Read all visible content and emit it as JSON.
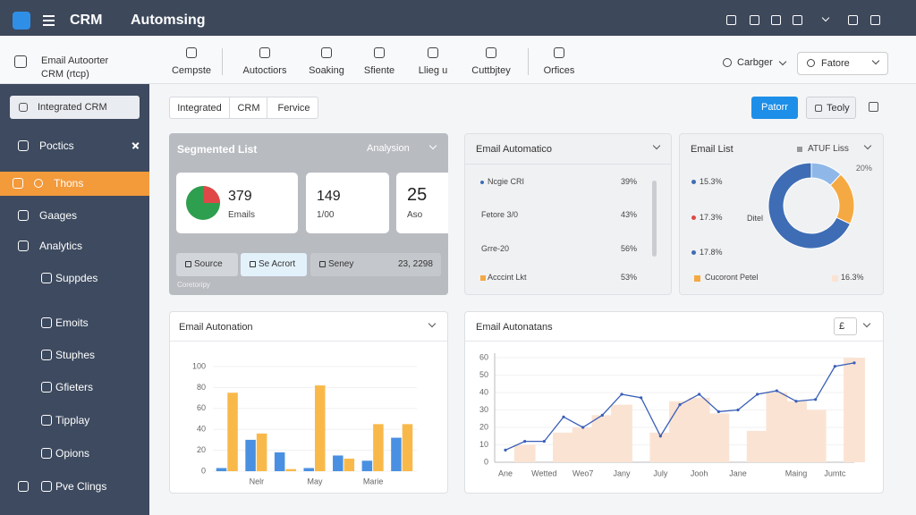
{
  "topbar": {
    "brand": "CRM",
    "title": "Automsing"
  },
  "subnav": {
    "app": [
      "Email Autoorter",
      "CRM (rtcp)"
    ],
    "items": [
      "Cempste",
      "Autoctiors",
      "Soaking",
      "Sfiente",
      "Llieg u",
      "Cuttbjtey",
      "Orfices"
    ],
    "selectors": [
      "Carbger",
      "Fatore"
    ]
  },
  "sidebar": {
    "items": [
      "Integrated CRM",
      "Poctics",
      "Thons",
      "Gaages",
      "Analytics",
      "Suppdes",
      "Emoits",
      "Stuphes",
      "Gfieters",
      "Tipplay",
      "Opions",
      "Pve Clings"
    ]
  },
  "tabs": [
    "Integrated",
    "CRM",
    "Fervice"
  ],
  "buttons": [
    "Patorr",
    "Teoly"
  ],
  "segmented": {
    "title": "Segmented List",
    "menu": "Analysion",
    "stats": [
      {
        "value": 379,
        "label": "Emails"
      },
      {
        "value": 149,
        "label": "1/00"
      },
      {
        "value": 25,
        "label": "Aso"
      }
    ],
    "actions": [
      "Source",
      "Se Acrort",
      "Seney"
    ],
    "total": "23, 2298",
    "note": "Coretoripy"
  },
  "automatico": {
    "title": "Email Automatico",
    "rows": [
      {
        "label": "Ncgie CRI",
        "value": "39%"
      },
      {
        "label": "Fetore 3/0",
        "value": "43%"
      },
      {
        "label": "Grre-20",
        "value": "56%"
      },
      {
        "label": "Acccint Lkt",
        "value": "53%"
      }
    ]
  },
  "email_list": {
    "title": "Email List",
    "menu": "ATUF Liss",
    "center_note": "Ditel",
    "legend": [
      "15.3%",
      "17.3%",
      "17.8%",
      "Cucoront Petel"
    ],
    "legend_colors": [
      "#3e6db5",
      "#e04848",
      "#3e6db5",
      "#f5a942"
    ],
    "extra": "16.3%"
  },
  "chart_data": [
    {
      "type": "pie",
      "values": [
        12,
        20,
        68
      ],
      "value_labels": [
        null,
        "20%",
        null
      ],
      "colors": [
        "#8fb8e8",
        "#f5a942",
        "#3e6db5"
      ]
    },
    {
      "type": "bar",
      "title": "Email Autonation",
      "categories": [
        null,
        "Nelr",
        null,
        "May",
        null,
        "Marie",
        null
      ],
      "series": [
        {
          "color": "#4a90e2",
          "values": [
            3,
            30,
            18,
            3,
            15,
            10,
            32
          ]
        },
        {
          "color": "#f9b94a",
          "values": [
            75,
            36,
            2,
            82,
            12,
            45,
            45
          ]
        }
      ],
      "ylim": [
        0,
        100
      ],
      "yticks": [
        0,
        20,
        40,
        60,
        80,
        100
      ]
    },
    {
      "type": "line",
      "title": "Email Autonatans",
      "menu": "£",
      "categories": [
        "Ane",
        null,
        "Wetted",
        null,
        "Weo7",
        null,
        "Jany",
        null,
        "July",
        null,
        "Jooh",
        null,
        "Jane",
        null,
        null,
        "Maing",
        null,
        "Jumtc",
        null
      ],
      "series": [
        {
          "type": "bar",
          "color": "#fbe3d3",
          "values": [
            null,
            10,
            null,
            17,
            20,
            27,
            33,
            null,
            17,
            35,
            37,
            28,
            null,
            18,
            40,
            35,
            30,
            null,
            60
          ]
        },
        {
          "type": "line",
          "color": "#3a5fb8",
          "values": [
            7,
            12,
            12,
            26,
            20,
            27,
            39,
            37,
            15,
            33,
            39,
            29,
            30,
            39,
            41,
            35,
            36,
            55,
            57
          ]
        }
      ],
      "ylim": [
        0,
        60
      ],
      "yticks": [
        0,
        10,
        20,
        30,
        40,
        50,
        60
      ]
    }
  ]
}
